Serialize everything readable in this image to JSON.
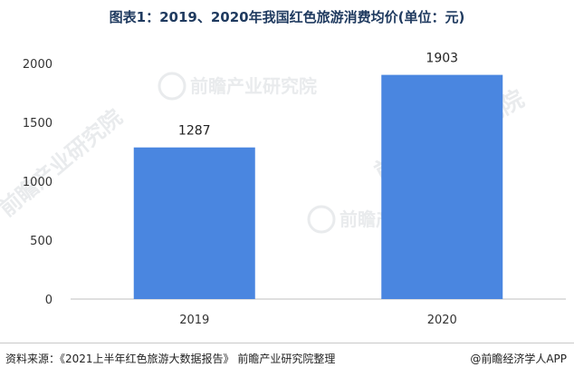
{
  "chart_data": {
    "type": "bar",
    "title": "图表1：2019、2020年我国红色旅游消费均价(单位：元)",
    "xlabel": "",
    "ylabel": "",
    "categories": [
      "2019",
      "2020"
    ],
    "values": [
      1287,
      1903
    ],
    "data_labels": [
      "1287",
      "1903"
    ],
    "yticks": [
      0,
      500,
      1000,
      1500,
      2000
    ],
    "ytick_labels": [
      "0",
      "500",
      "1000",
      "1500",
      "2000"
    ],
    "ylim": [
      0,
      2000
    ],
    "grid": false,
    "legend": "none",
    "bar_color": "#4a86e0"
  },
  "footer": {
    "source": "资料来源：《2021上半年红色旅游大数据报告》 前瞻产业研究院整理",
    "brand": "@前瞻经济学人APP"
  },
  "watermark": {
    "text": "前瞻产业研究院"
  }
}
